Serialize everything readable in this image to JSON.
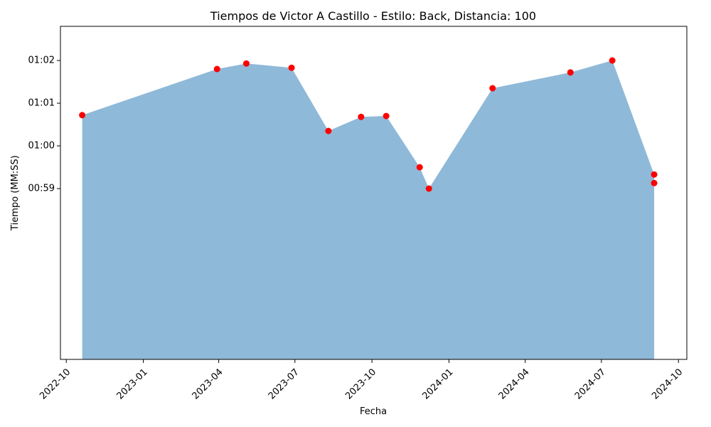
{
  "chart_data": {
    "type": "area",
    "title": "Tiempos de Victor A Castillo - Estilo: Back, Distancia: 100",
    "xlabel": "Fecha",
    "ylabel": "Tiempo (MM:SS)",
    "x_ticks": [
      "2022-10",
      "2023-01",
      "2023-04",
      "2023-07",
      "2023-10",
      "2024-01",
      "2024-04",
      "2024-07",
      "2024-10"
    ],
    "y_ticks": [
      "00:59",
      "01:00",
      "01:01",
      "01:02"
    ],
    "ylim_seconds": [
      55.0,
      62.8
    ],
    "xlim": [
      "2022-09-24",
      "2024-10-11"
    ],
    "grid": false,
    "fill_color": "#8fb9d8",
    "marker_color": "#ff0000",
    "series": [
      {
        "points": [
          {
            "date": "2022-10-20",
            "time": "01:00.72"
          },
          {
            "date": "2023-03-30",
            "time": "01:01.80"
          },
          {
            "date": "2023-05-04",
            "time": "01:01.93"
          },
          {
            "date": "2023-06-27",
            "time": "01:01.83"
          },
          {
            "date": "2023-08-10",
            "time": "01:00.35"
          },
          {
            "date": "2023-09-18",
            "time": "01:00.68"
          },
          {
            "date": "2023-10-18",
            "time": "01:00.70"
          },
          {
            "date": "2023-11-27",
            "time": "00:59.50"
          },
          {
            "date": "2023-12-08",
            "time": "00:59.00"
          },
          {
            "date": "2024-02-22",
            "time": "01:01.35"
          },
          {
            "date": "2024-05-25",
            "time": "01:01.72"
          },
          {
            "date": "2024-07-14",
            "time": "01:02.00"
          },
          {
            "date": "2024-09-02",
            "time": "00:59.33"
          },
          {
            "date": "2024-09-02",
            "time": "00:59.13"
          }
        ]
      }
    ]
  }
}
